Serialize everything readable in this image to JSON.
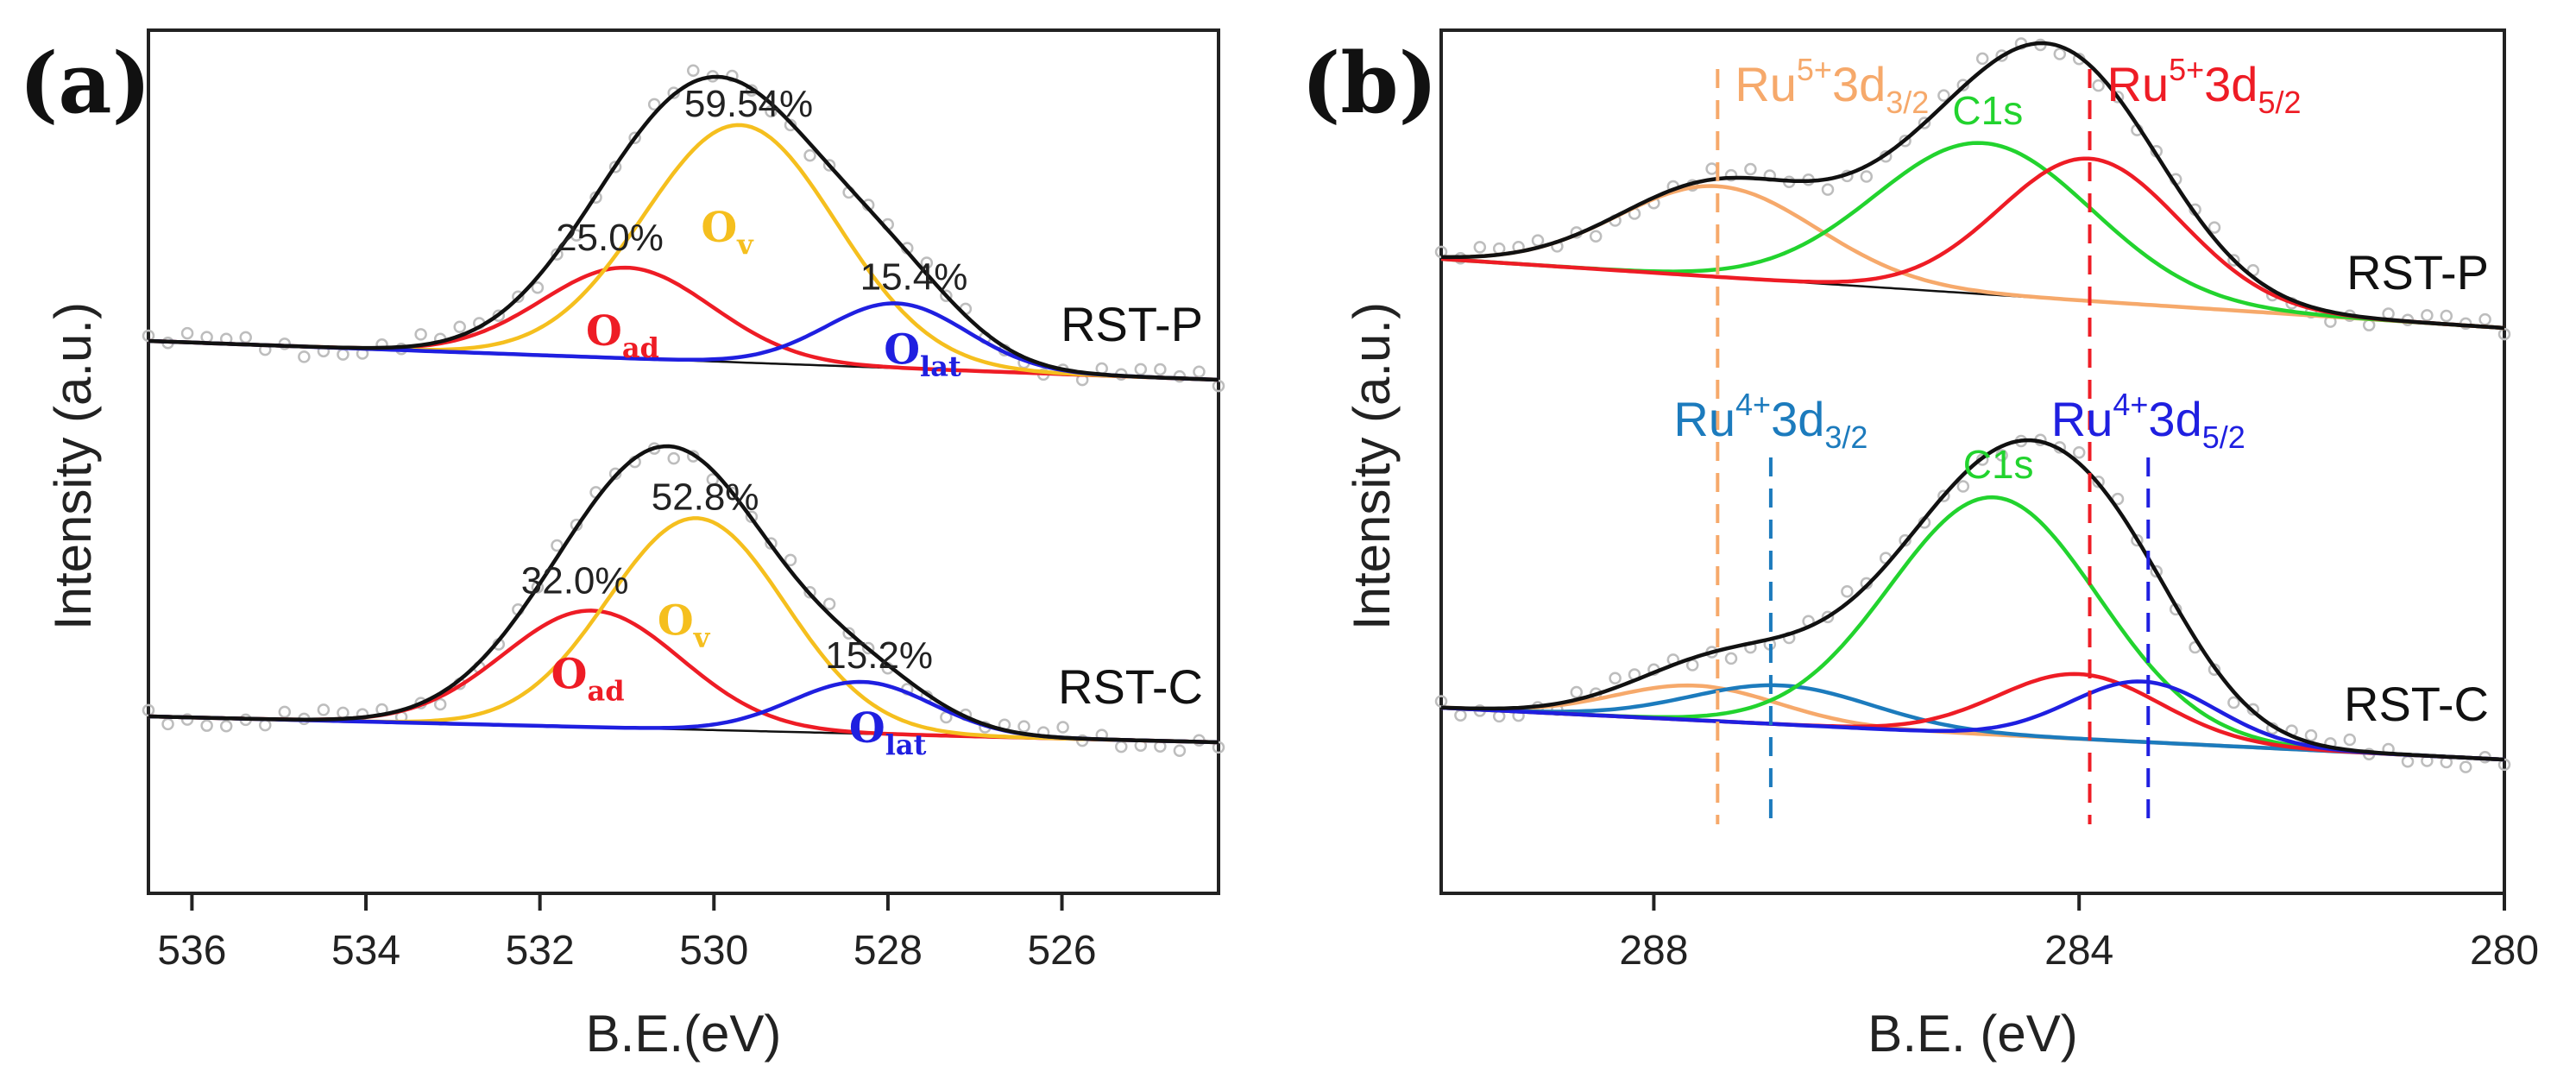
{
  "chart_data": [
    {
      "panel": "(a)",
      "type": "line",
      "xlabel": "B.E.(eV)",
      "ylabel": "Intensity (a.u.)",
      "xlim": [
        536.5,
        524.2
      ],
      "xticks": [
        "536",
        "534",
        "532",
        "530",
        "528",
        "526"
      ],
      "xtick_values": [
        536,
        534,
        532,
        530,
        528,
        526
      ],
      "ylim": [
        0,
        1
      ],
      "colors": {
        "envelope": "#111111",
        "O_ad": "#ee1c25",
        "O_v": "#f5bf1e",
        "O_lat": "#1f1fe0",
        "baseline": "#111111",
        "raw": "#bdbdbd"
      },
      "spectra": [
        {
          "name": "RST-P",
          "baseline_start": 0.64,
          "baseline_end": 0.595,
          "components": [
            {
              "name": "O_ad",
              "label_main": "O",
              "label_sub": "ad",
              "center": 531.0,
              "fwhm": 2.3,
              "height": 0.105,
              "percent_label": "25.0%"
            },
            {
              "name": "O_v",
              "label_main": "O",
              "label_sub": "v",
              "center": 529.7,
              "fwhm": 2.6,
              "height": 0.275,
              "percent_label": "59.54%"
            },
            {
              "name": "O_lat",
              "label_main": "O",
              "label_sub": "lat",
              "center": 527.9,
              "fwhm": 1.9,
              "height": 0.075,
              "percent_label": "15.4%"
            }
          ]
        },
        {
          "name": "RST-C",
          "baseline_start": 0.205,
          "baseline_end": 0.175,
          "components": [
            {
              "name": "O_ad",
              "label_main": "O",
              "label_sub": "ad",
              "center": 531.4,
              "fwhm": 2.4,
              "height": 0.135,
              "percent_label": "32.0%"
            },
            {
              "name": "O_v",
              "label_main": "O",
              "label_sub": "v",
              "center": 530.2,
              "fwhm": 2.4,
              "height": 0.245,
              "percent_label": "52.8%"
            },
            {
              "name": "O_lat",
              "label_main": "O",
              "label_sub": "lat",
              "center": 528.3,
              "fwhm": 1.9,
              "height": 0.06,
              "percent_label": "15.2%"
            }
          ]
        }
      ]
    },
    {
      "panel": "(b)",
      "type": "line",
      "xlabel": "B.E. (eV)",
      "ylabel": "Intensity (a.u.)",
      "xlim": [
        290.0,
        280.0
      ],
      "xticks": [
        "288",
        "284",
        "280"
      ],
      "xtick_values": [
        288,
        284,
        280
      ],
      "ylim": [
        0,
        1
      ],
      "colors": {
        "envelope": "#111111",
        "Ru5_3d32": "#f6a96b",
        "Ru5_3d52": "#ee1c25",
        "C1s": "#22d32e",
        "Ru4_3d32": "#1c7bbd",
        "Ru4_3d52": "#1f1fe0",
        "baseline": "#111111",
        "raw": "#bdbdbd"
      },
      "reference_lines": [
        {
          "name": "Ru5_3d32",
          "x": 287.4,
          "label_main": "Ru",
          "label_sup": "5+",
          "label_rest": "3d",
          "label_sub": "3/2",
          "color": "#f6a96b"
        },
        {
          "name": "Ru5_3d52",
          "x": 283.9,
          "label_main": "Ru",
          "label_sup": "5+",
          "label_rest": "3d",
          "label_sub": "5/2",
          "color": "#ee1c25"
        },
        {
          "name": "Ru4_3d32",
          "x": 286.9,
          "label_main": "Ru",
          "label_sup": "4+",
          "label_rest": "3d",
          "label_sub": "3/2",
          "color": "#1c7bbd"
        },
        {
          "name": "Ru4_3d52",
          "x": 283.35,
          "label_main": "Ru",
          "label_sup": "4+",
          "label_rest": "3d",
          "label_sub": "5/2",
          "color": "#1f1fe0"
        }
      ],
      "c1s_label": "C1s",
      "spectra": [
        {
          "name": "RST-P",
          "baseline_start": 0.735,
          "baseline_end": 0.655,
          "components": [
            {
              "name": "Ru5_3d32",
              "center": 287.4,
              "fwhm": 2.2,
              "height": 0.105
            },
            {
              "name": "C1s",
              "center": 284.9,
              "fwhm": 2.4,
              "height": 0.175
            },
            {
              "name": "Ru5_3d52",
              "center": 283.9,
              "fwhm": 2.0,
              "height": 0.165
            }
          ]
        },
        {
          "name": "RST-C",
          "baseline_start": 0.215,
          "baseline_end": 0.155,
          "components": [
            {
              "name": "Ru5_3d32",
              "center": 287.6,
              "fwhm": 1.8,
              "height": 0.04
            },
            {
              "name": "Ru4_3d32",
              "center": 286.8,
              "fwhm": 2.0,
              "height": 0.045
            },
            {
              "name": "C1s",
              "center": 284.8,
              "fwhm": 2.3,
              "height": 0.275
            },
            {
              "name": "Ru5_3d52",
              "center": 284.0,
              "fwhm": 1.8,
              "height": 0.075
            },
            {
              "name": "Ru4_3d52",
              "center": 283.4,
              "fwhm": 1.6,
              "height": 0.07
            }
          ]
        }
      ]
    }
  ]
}
